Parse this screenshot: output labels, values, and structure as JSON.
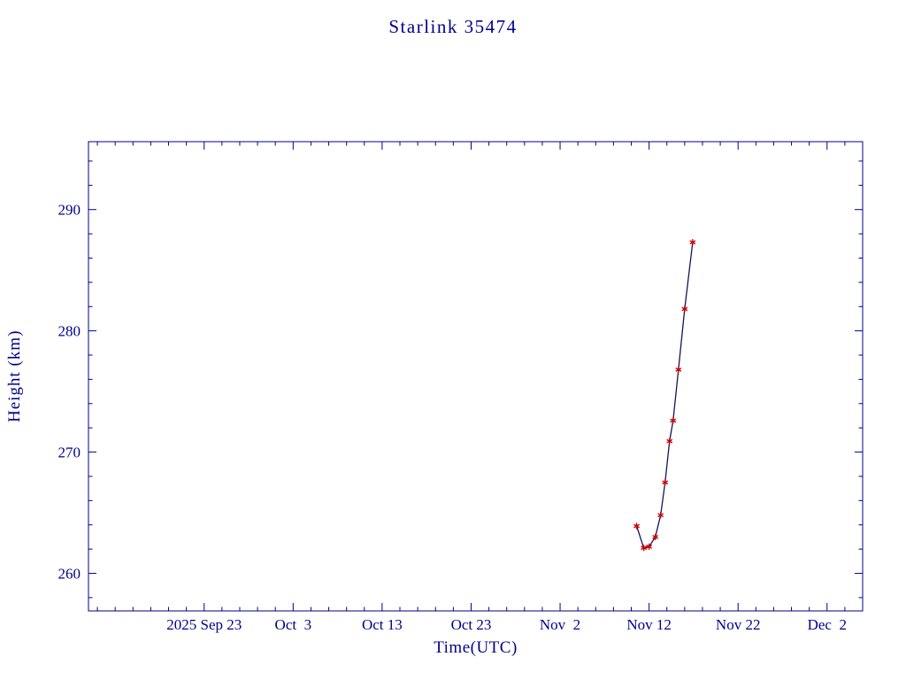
{
  "chart_data": {
    "type": "line",
    "title": "Starlink 35474",
    "xlabel": "Time(UTC)",
    "ylabel": "Height (km)",
    "colors": {
      "background": "#ffffff",
      "axis": "#00008b",
      "text": "#00008b",
      "line": "#14145a",
      "marker": "#cc0000"
    },
    "x_axis": {
      "tick_labels": [
        "2025 Sep 23",
        "Oct  3",
        "Oct 13",
        "Oct 23",
        "Nov  2",
        "Nov 12",
        "Nov 22",
        "Dec  2"
      ],
      "tick_days": [
        13,
        23,
        33,
        43,
        53,
        63,
        73,
        83
      ],
      "domain_days": [
        0,
        87
      ],
      "day_zero_date": "2025 Sep 10",
      "minor_tick_step_days": 2
    },
    "y_axis": {
      "ticks": [
        260,
        270,
        280,
        290
      ],
      "domain": [
        256.9,
        295.6
      ],
      "minor_tick_step": 2
    },
    "grid": false,
    "legend": "none",
    "series": [
      {
        "name": "height",
        "marker_style": "red asterisk",
        "points": [
          {
            "day": 61.6,
            "date_approx": "Nov 10.6",
            "height_km": 263.9
          },
          {
            "day": 62.4,
            "date_approx": "Nov 11.4",
            "height_km": 262.1
          },
          {
            "day": 63.0,
            "date_approx": "Nov 12.0",
            "height_km": 262.2
          },
          {
            "day": 63.7,
            "date_approx": "Nov 12.7",
            "height_km": 263.0
          },
          {
            "day": 64.3,
            "date_approx": "Nov 13.3",
            "height_km": 264.8
          },
          {
            "day": 64.8,
            "date_approx": "Nov 13.8",
            "height_km": 267.5
          },
          {
            "day": 65.3,
            "date_approx": "Nov 14.3",
            "height_km": 270.9
          },
          {
            "day": 65.7,
            "date_approx": "Nov 14.7",
            "height_km": 272.6
          },
          {
            "day": 66.3,
            "date_approx": "Nov 15.3",
            "height_km": 276.8
          },
          {
            "day": 67.0,
            "date_approx": "Nov 16.0",
            "height_km": 281.8
          },
          {
            "day": 67.9,
            "date_approx": "Nov 16.9",
            "height_km": 287.3
          }
        ]
      }
    ]
  }
}
